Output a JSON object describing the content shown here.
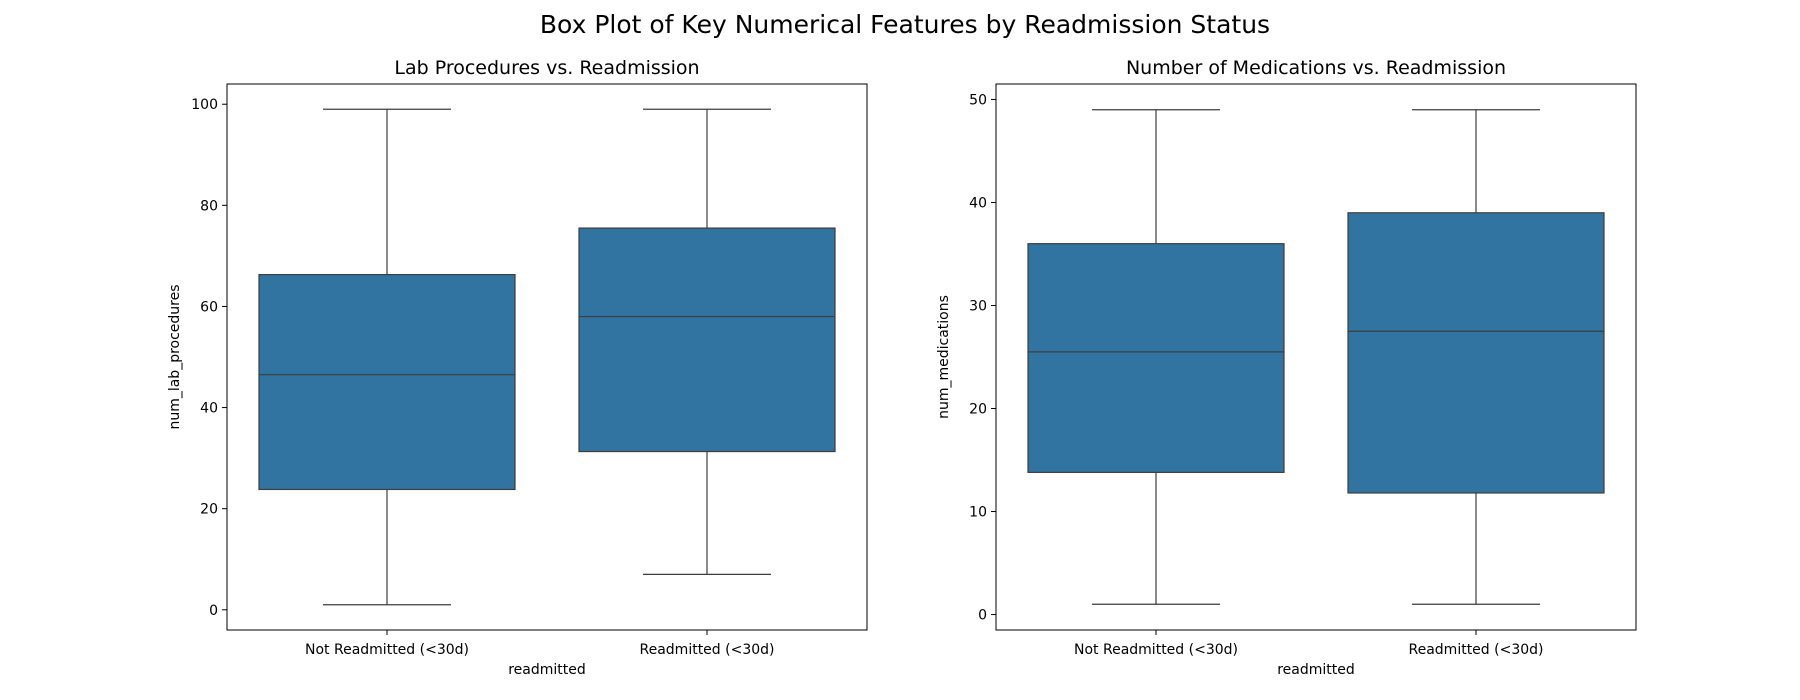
{
  "figure": {
    "suptitle": "Box Plot of Key Numerical Features by Readmission Status"
  },
  "chart_data": [
    {
      "type": "box",
      "title": "Lab Procedures vs. Readmission",
      "xlabel": "readmitted",
      "ylabel": "num_lab_procedures",
      "categories": [
        "Not Readmitted (<30d)",
        "Readmitted (<30d)"
      ],
      "ylim": [
        -4,
        104
      ],
      "yticks": [
        0,
        20,
        40,
        60,
        80,
        100
      ],
      "box_color": "#3274a1",
      "line_color": "#3d3d3d",
      "series": [
        {
          "whisker_low": 1,
          "q1": 23.8,
          "median": 46.5,
          "q3": 66.3,
          "whisker_high": 99
        },
        {
          "whisker_low": 7,
          "q1": 31.3,
          "median": 58,
          "q3": 75.5,
          "whisker_high": 99
        }
      ]
    },
    {
      "type": "box",
      "title": "Number of Medications vs. Readmission",
      "xlabel": "readmitted",
      "ylabel": "num_medications",
      "categories": [
        "Not Readmitted (<30d)",
        "Readmitted (<30d)"
      ],
      "ylim": [
        -1.5,
        51.5
      ],
      "yticks": [
        0,
        10,
        20,
        30,
        40,
        50
      ],
      "box_color": "#3274a1",
      "line_color": "#3d3d3d",
      "series": [
        {
          "whisker_low": 1,
          "q1": 13.8,
          "median": 25.5,
          "q3": 36,
          "whisker_high": 49
        },
        {
          "whisker_low": 1,
          "q1": 11.8,
          "median": 27.5,
          "q3": 39,
          "whisker_high": 49
        }
      ]
    }
  ]
}
